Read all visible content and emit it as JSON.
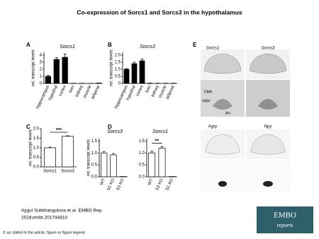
{
  "title": "Co-expression of Sorcs1 and Sorcs3 in the hypothalamus",
  "citation": [
    "Aygul Subkhangulova et al. EMBO Rep.",
    "2018;embr.201744810"
  ],
  "copyright": "© as stated in the article, figure or figure legend",
  "logo": {
    "line1": "EMBO",
    "line2": "reports"
  },
  "panel_e": {
    "label": "E",
    "columns_top": [
      "Sorcs1",
      "Sorcs3"
    ],
    "regions": [
      "DMH",
      "VMH",
      "Arc"
    ],
    "columns_bottom": [
      "Agrp",
      "Npy"
    ]
  },
  "chart_data": [
    {
      "type": "bar",
      "panel": "A",
      "title": "Sorcs1",
      "y_label": "rel. transcript levels",
      "categories": [
        "hippocampus",
        "hypothal",
        "cortex",
        "liver",
        "kidney",
        "muscle",
        "adipose"
      ],
      "values": [
        1.0,
        3.4,
        3.7,
        0.02,
        0.02,
        0.01,
        0.05
      ],
      "errors": [
        0.15,
        0.25,
        0.45,
        0.01,
        0.01,
        0.01,
        0.02
      ],
      "color": "#000000",
      "ylim": [
        0,
        4.4
      ],
      "yticks": [
        0,
        1,
        2,
        3,
        4
      ]
    },
    {
      "type": "bar",
      "panel": "B",
      "title": "Sorcs3",
      "y_label": "rel. transcript levels",
      "categories": [
        "hippocampus",
        "hypothal",
        "cortex",
        "liver",
        "kidney",
        "muscle",
        "adipose"
      ],
      "values": [
        1.0,
        1.4,
        1.6,
        0.02,
        0.01,
        0.01,
        0.01
      ],
      "errors": [
        0.05,
        0.1,
        0.12,
        0.01,
        0.01,
        0.01,
        0.01
      ],
      "color": "#000000",
      "ylim": [
        0,
        2.2
      ],
      "yticks": [
        0,
        0.5,
        {
          "value": 1,
          "label": "1.0"
        },
        1.5,
        {
          "value": 2,
          "label": "2.0"
        }
      ]
    },
    {
      "type": "bar",
      "panel": "C",
      "y_label": "rel. transcript levels",
      "annotation": "***",
      "categories": [
        "Sorcs1",
        "Sorcs3"
      ],
      "values": [
        1.0,
        1.6
      ],
      "errors": [
        0.04,
        0.03
      ],
      "color": "#ffffff",
      "ylim": [
        0,
        2.0
      ],
      "yticks": [
        {
          "value": 0,
          "label": "0.0"
        },
        0.5,
        {
          "value": 1,
          "label": "1.0"
        },
        1.5,
        {
          "value": 2,
          "label": "2.0"
        }
      ]
    },
    {
      "type": "bar",
      "panel": "D",
      "title": "Sorcs3",
      "y_label": "rel. transcript levels",
      "categories": [
        "WT",
        "S1 KO",
        "S3 KO"
      ],
      "values": [
        1.0,
        0.92,
        0.01
      ],
      "errors": [
        0.06,
        0.06,
        0.0
      ],
      "color": "#ffffff",
      "ylim": [
        0,
        1.6
      ],
      "yticks": [
        {
          "value": 0,
          "label": "0.0"
        },
        0.5,
        {
          "value": 1,
          "label": "1.0"
        },
        1.5
      ]
    },
    {
      "type": "bar",
      "title": "Sorcs1",
      "annotation": "**",
      "categories": [
        "WT",
        "S3 KO",
        "S1 KO"
      ],
      "values": [
        1.0,
        1.2,
        0.01
      ],
      "errors": [
        0.07,
        0.06,
        0.0
      ],
      "color": "#ffffff",
      "ylim": [
        0,
        1.6
      ],
      "yticks": [
        {
          "value": 0,
          "label": "0.0"
        },
        0.5,
        {
          "value": 1,
          "label": "1.0"
        },
        1.5
      ]
    }
  ]
}
